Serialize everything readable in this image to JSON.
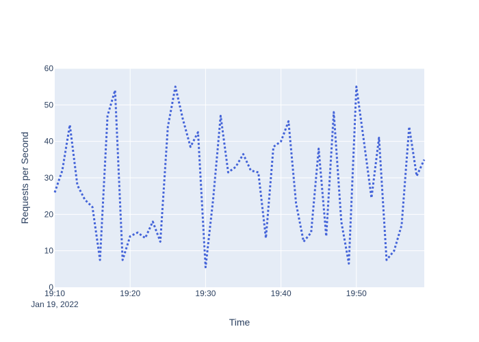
{
  "chart_data": {
    "type": "line",
    "title": "",
    "xlabel": "Time",
    "ylabel": "Requests per Second",
    "x_start": "2022-01-19 19:10",
    "x_step_minutes": 1,
    "xlim": [
      "2022-01-19 19:10",
      "2022-01-19 19:59"
    ],
    "ylim": [
      0,
      60
    ],
    "x_ticks": [
      {
        "time": "2022-01-19 19:10",
        "label": "19:10",
        "sublabel": "Jan 19, 2022"
      },
      {
        "time": "2022-01-19 19:20",
        "label": "19:20",
        "sublabel": ""
      },
      {
        "time": "2022-01-19 19:30",
        "label": "19:30",
        "sublabel": ""
      },
      {
        "time": "2022-01-19 19:40",
        "label": "19:40",
        "sublabel": ""
      },
      {
        "time": "2022-01-19 19:50",
        "label": "19:50",
        "sublabel": ""
      }
    ],
    "y_ticks": [
      {
        "value": 0,
        "label": "0"
      },
      {
        "value": 10,
        "label": "10"
      },
      {
        "value": 20,
        "label": "20"
      },
      {
        "value": 30,
        "label": "30"
      },
      {
        "value": 40,
        "label": "40"
      },
      {
        "value": 50,
        "label": "50"
      },
      {
        "value": 60,
        "label": "60"
      }
    ],
    "grid": true,
    "legend": false,
    "series": [
      {
        "color": "#4363d8",
        "line_style": "dotted",
        "values": [
          26,
          32,
          44.5,
          28,
          24,
          22,
          7.5,
          47,
          54,
          7.5,
          14,
          15,
          13.5,
          18,
          12.5,
          44,
          55,
          46,
          38.5,
          42.5,
          5.5,
          24,
          47,
          31.5,
          33,
          36.5,
          32,
          31.5,
          13.5,
          38.5,
          40,
          45.5,
          23,
          12.5,
          15,
          38,
          14,
          48,
          18,
          6.5,
          55,
          40,
          24.5,
          41,
          7.5,
          10,
          17,
          44,
          30.5,
          35
        ]
      }
    ]
  }
}
